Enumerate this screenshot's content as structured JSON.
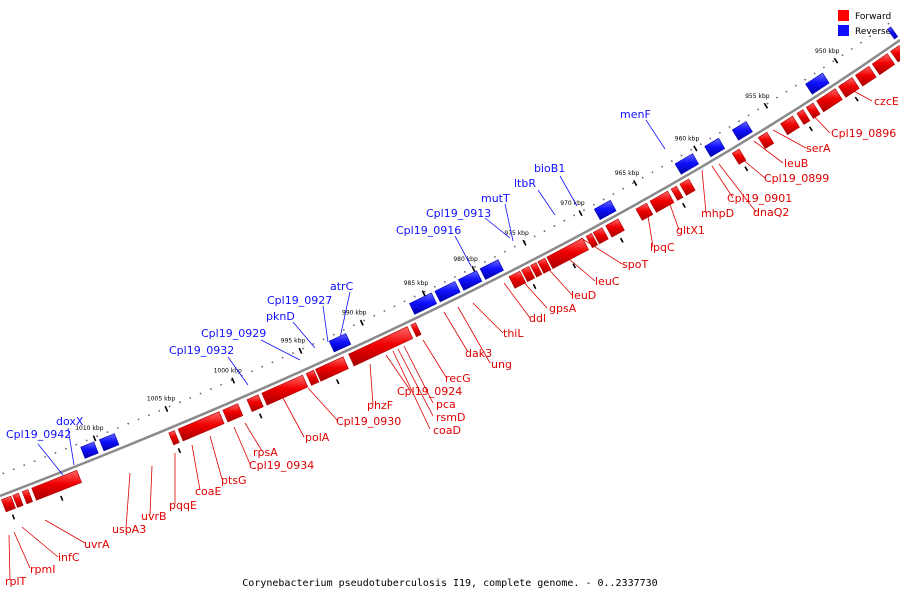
{
  "legend": {
    "forward": {
      "label": "Forward",
      "color": "#ff0000"
    },
    "reverse": {
      "label": "Reverse",
      "color": "#1010ff"
    }
  },
  "caption": "Corynebacterium pseudotuberculosis I19, complete genome. - 0..2337730",
  "map_range": {
    "start_kbp": 948,
    "end_kbp": 1015
  },
  "ticks_kbp": [
    "950 kbp",
    "955 kbp",
    "960 kbp",
    "965 kbp",
    "970 kbp",
    "975 kbp",
    "980 kbp",
    "985 kbp",
    "990 kbp",
    "995 kbp",
    "1000 kbp",
    "1005 kbp",
    "1010 kbp"
  ],
  "forward_labels": [
    "czcE",
    "Cpl19_0896",
    "serA",
    "leuB",
    "Cpl19_0899",
    "dnaQ2",
    "Cpl19_0901",
    "mhpD",
    "gltX1",
    "lpqC",
    "spoT",
    "leuC",
    "leuD",
    "gpsA",
    "ddl",
    "thiL",
    "ung",
    "dak3",
    "recG",
    "pca",
    "rsmD",
    "coaD",
    "Cpl19_0924",
    "phzF",
    "Cpl19_0930",
    "polA",
    "rpsA",
    "Cpl19_0934",
    "ptsG",
    "coaE",
    "pqqE",
    "uvrB",
    "uspA3",
    "uvrA",
    "infC",
    "rpmI",
    "rplT"
  ],
  "reverse_labels": [
    "menF",
    "bioB1",
    "ltbR",
    "mutT",
    "Cpl19_0913",
    "Cpl19_0916",
    "atrC",
    "Cpl19_0927",
    "pknD",
    "Cpl19_0929",
    "Cpl19_0932",
    "doxX",
    "Cpl19_0942"
  ]
}
